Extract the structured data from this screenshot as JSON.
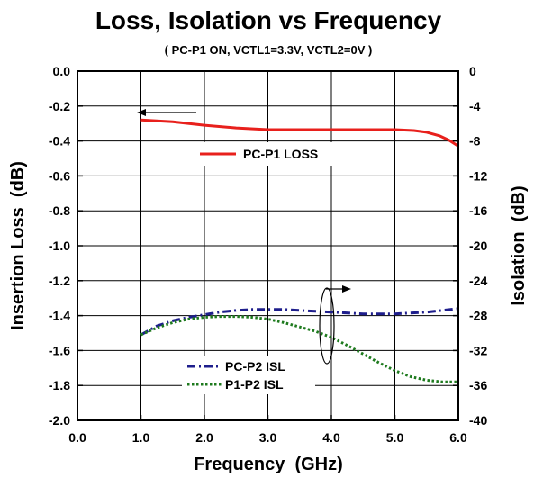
{
  "chart_data": {
    "type": "line",
    "title": "Loss, Isolation vs Frequency",
    "subtitle": "( PC-P1 ON, VCTL1=3.3V, VCTL2=0V )",
    "xlabel": "Frequency  (GHz)",
    "ylabel": "Insertion Loss  (dB)",
    "y2label": "Isolation  (dB)",
    "xlim": [
      0.0,
      6.0
    ],
    "ylim": [
      -2.0,
      0.0
    ],
    "y2lim": [
      -40,
      0
    ],
    "xticks": [
      "0.0",
      "1.0",
      "2.0",
      "3.0",
      "4.0",
      "5.0",
      "6.0"
    ],
    "yticks": [
      "0.0",
      "-0.2",
      "-0.4",
      "-0.6",
      "-0.8",
      "-1.0",
      "-1.2",
      "-1.4",
      "-1.6",
      "-1.8",
      "-2.0"
    ],
    "y2ticks": [
      "0",
      "-4",
      "-8",
      "-12",
      "-16",
      "-20",
      "-24",
      "-28",
      "-32",
      "-36",
      "-40"
    ],
    "grid": true,
    "series": [
      {
        "name": "PC-P1 LOSS",
        "axis": "left",
        "color": "#e8201c",
        "style": "solid",
        "x": [
          1.0,
          1.5,
          2.0,
          2.5,
          3.0,
          3.5,
          4.0,
          4.5,
          5.0,
          5.3,
          5.5,
          5.7,
          5.85,
          6.0
        ],
        "y": [
          -0.28,
          -0.29,
          -0.31,
          -0.325,
          -0.335,
          -0.335,
          -0.335,
          -0.335,
          -0.335,
          -0.34,
          -0.35,
          -0.37,
          -0.395,
          -0.43
        ]
      },
      {
        "name": "PC-P2 ISL",
        "axis": "right",
        "color": "#1e1e8c",
        "style": "dashdot",
        "x": [
          1.0,
          1.25,
          1.5,
          1.75,
          2.0,
          2.25,
          2.5,
          2.75,
          3.0,
          3.25,
          3.5,
          3.75,
          4.0,
          4.5,
          5.0,
          5.5,
          6.0
        ],
        "y": [
          -30.2,
          -29.2,
          -28.6,
          -28.2,
          -27.9,
          -27.6,
          -27.4,
          -27.3,
          -27.3,
          -27.3,
          -27.4,
          -27.5,
          -27.6,
          -27.8,
          -27.8,
          -27.6,
          -27.2
        ]
      },
      {
        "name": "P1-P2 ISL",
        "axis": "right",
        "color": "#1e7a1e",
        "style": "dotted",
        "x": [
          1.0,
          1.25,
          1.5,
          1.75,
          2.0,
          2.25,
          2.5,
          2.75,
          3.0,
          3.25,
          3.5,
          3.75,
          4.0,
          4.25,
          4.5,
          4.75,
          5.0,
          5.25,
          5.5,
          5.75,
          6.0
        ],
        "y": [
          -30.2,
          -29.4,
          -28.8,
          -28.4,
          -28.2,
          -28.1,
          -28.1,
          -28.2,
          -28.4,
          -28.8,
          -29.3,
          -29.8,
          -30.5,
          -31.4,
          -32.4,
          -33.4,
          -34.3,
          -35.0,
          -35.4,
          -35.6,
          -35.6
        ]
      }
    ]
  }
}
